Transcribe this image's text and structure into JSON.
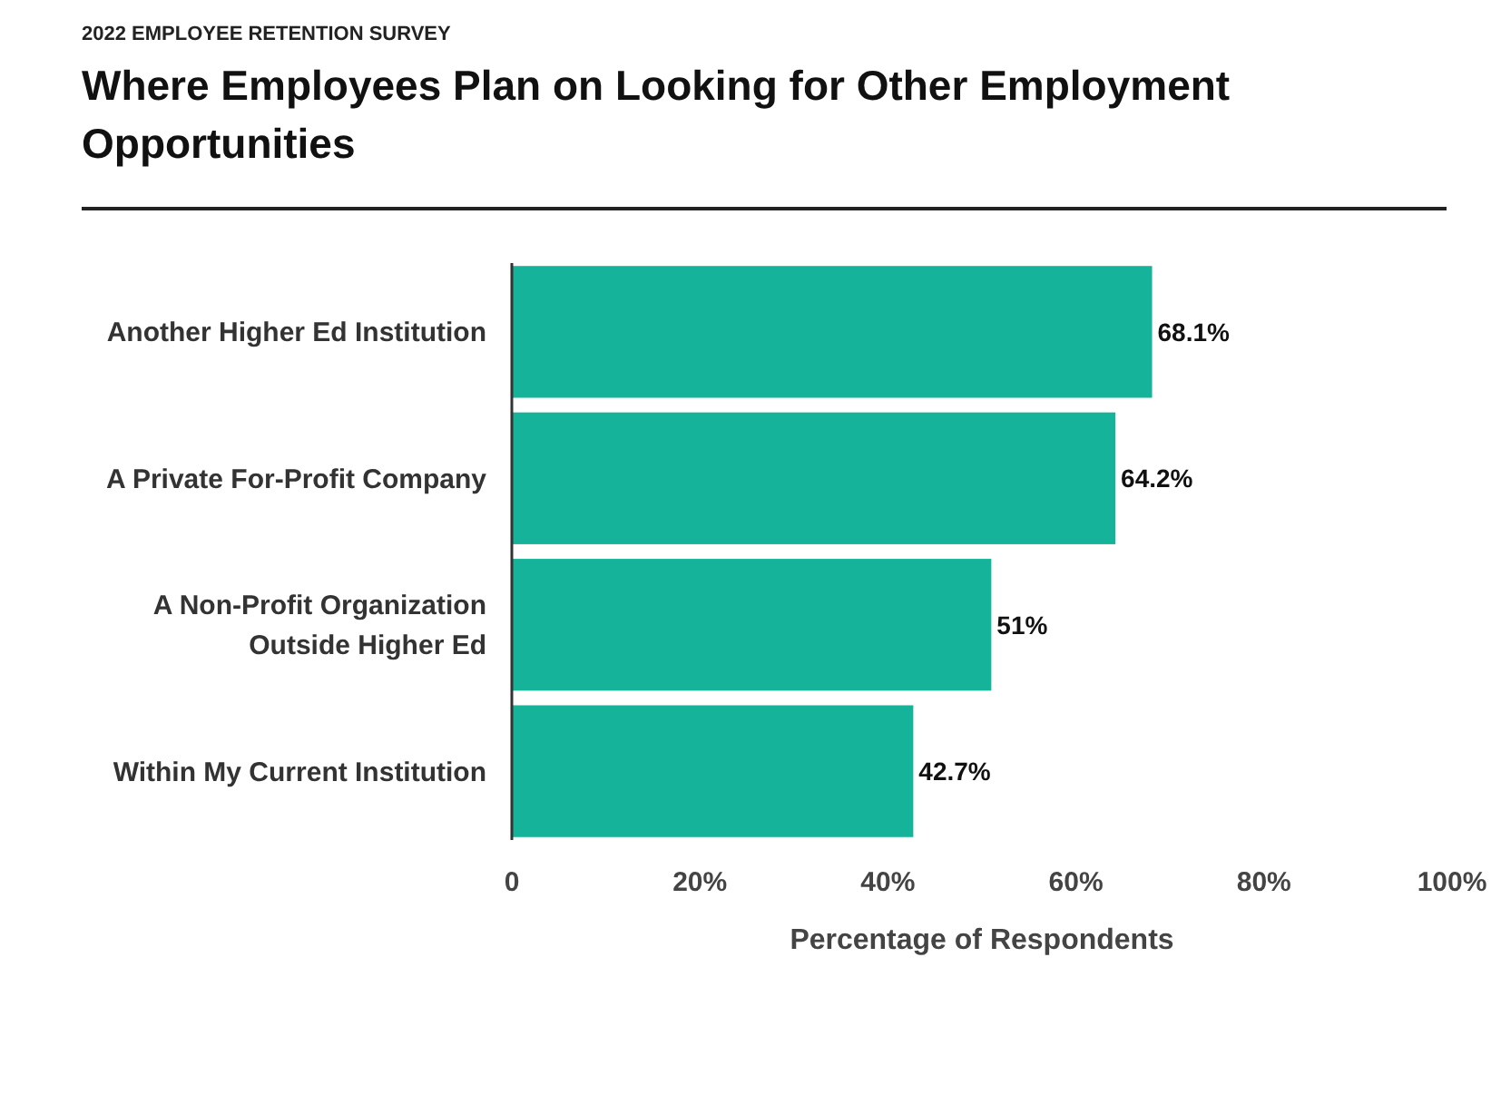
{
  "chart_data": {
    "type": "bar",
    "orientation": "horizontal",
    "subtitle": "2022 EMPLOYEE RETENTION SURVEY",
    "title": "Where Employees Plan on Looking for Other Employment Opportunities",
    "xlabel": "Percentage of Respondents",
    "categories": [
      "Another Higher Ed Institution",
      "A Private For-Profit Company",
      "A Non-Profit Organization Outside Higher Ed",
      "Within My Current Institution"
    ],
    "values": [
      68.1,
      64.2,
      51,
      42.7
    ],
    "color": "#16b39b",
    "value_labels": [
      "68.1%",
      "64.2%",
      "51%",
      "42.7%"
    ],
    "xlim": [
      0,
      100
    ],
    "xticks": [
      {
        "value": 0,
        "label": "0"
      },
      {
        "value": 20,
        "label": "20%"
      },
      {
        "value": 40,
        "label": "40%"
      },
      {
        "value": 60,
        "label": "60%"
      },
      {
        "value": 80,
        "label": "80%"
      },
      {
        "value": 100,
        "label": "100%"
      }
    ],
    "grid": false
  }
}
